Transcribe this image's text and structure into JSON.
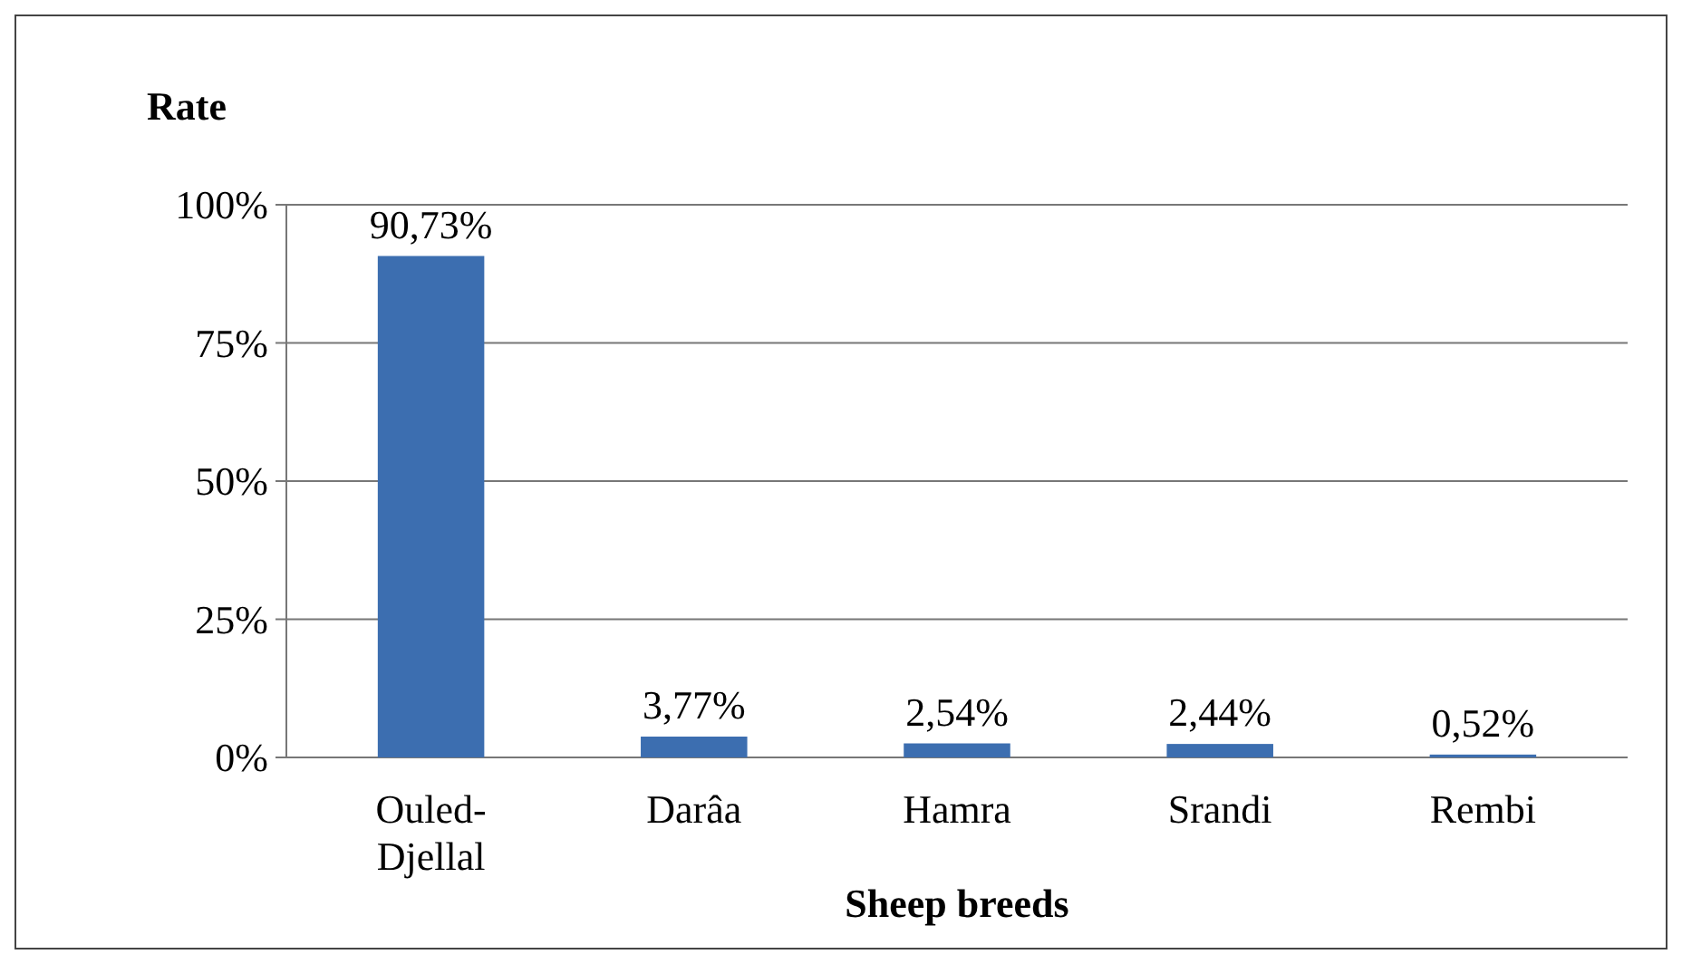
{
  "chart_data": {
    "type": "bar",
    "ylabel": "Rate",
    "xlabel": "Sheep breeds",
    "categories": [
      "Ouled-Djellal",
      "Darâa",
      "Hamra",
      "Srandi",
      "Rembi"
    ],
    "values": [
      90.73,
      3.77,
      2.54,
      2.44,
      0.52
    ],
    "value_labels": [
      "90,73%",
      "3,77%",
      "2,54%",
      "2,44%",
      "0,52%"
    ],
    "color": "#3c6eb0",
    "ylim": [
      0,
      100
    ],
    "yticks": [
      {
        "value": 0,
        "label": "0%"
      },
      {
        "value": 25,
        "label": "25%"
      },
      {
        "value": 50,
        "label": "50%"
      },
      {
        "value": 75,
        "label": "75%"
      },
      {
        "value": 100,
        "label": "100%"
      }
    ],
    "grid": "y"
  }
}
